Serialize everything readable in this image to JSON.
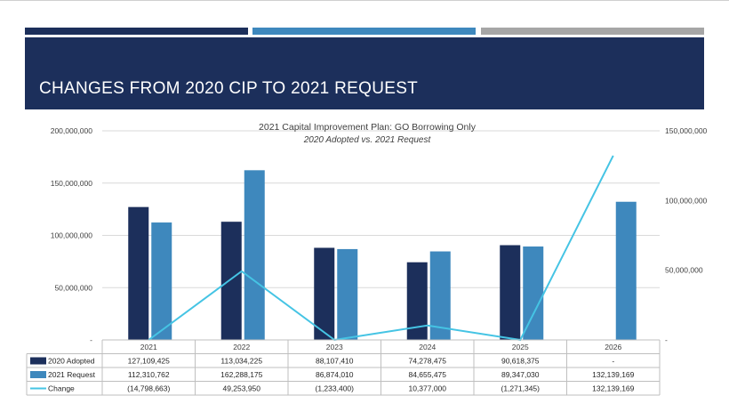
{
  "slide": {
    "title": "CHANGES FROM 2020 CIP TO 2021 REQUEST"
  },
  "colors": {
    "navy": "#1c2f5b",
    "blue": "#3e88bd",
    "gray": "#a6a6a6",
    "change_line": "#45c4e4"
  },
  "chart_data": {
    "type": "bar",
    "title": "2021 Capital Improvement Plan: GO Borrowing Only",
    "subtitle": "2020 Adopted vs. 2021 Request",
    "categories": [
      "2021",
      "2022",
      "2023",
      "2024",
      "2025",
      "2026"
    ],
    "series": [
      {
        "name": "2020 Adopted",
        "type": "bar",
        "axis": "left",
        "color": "#1c2f5b",
        "values": [
          127109425,
          113034225,
          88107410,
          74278475,
          90618375,
          null
        ],
        "labels": [
          "127,109,425",
          "113,034,225",
          "88,107,410",
          "74,278,475",
          "90,618,375",
          "-"
        ]
      },
      {
        "name": "2021 Request",
        "type": "bar",
        "axis": "left",
        "color": "#3e88bd",
        "values": [
          112310762,
          162288175,
          86874010,
          84655475,
          89347030,
          132139169
        ],
        "labels": [
          "112,310,762",
          "162,288,175",
          "86,874,010",
          "84,655,475",
          "89,347,030",
          "132,139,169"
        ]
      },
      {
        "name": "Change",
        "type": "line",
        "axis": "right",
        "color": "#45c4e4",
        "values": [
          -14798663,
          49253950,
          -1233400,
          10377000,
          -1271345,
          132139169
        ],
        "labels": [
          "(14,798,663)",
          "49,253,950",
          "(1,233,400)",
          "10,377,000",
          "(1,271,345)",
          "132,139,169"
        ]
      }
    ],
    "y_left": {
      "ylim": [
        0,
        200000000
      ],
      "ticks": [
        0,
        50000000,
        100000000,
        150000000,
        200000000
      ],
      "tick_labels": [
        "-",
        "50,000,000",
        "100,000,000",
        "150,000,000",
        "200,000,000"
      ]
    },
    "y_right": {
      "ylim": [
        0,
        150000000
      ],
      "ticks": [
        0,
        50000000,
        100000000,
        150000000
      ],
      "tick_labels": [
        "-",
        "50,000,000",
        "100,000,000",
        "150,000,000"
      ]
    },
    "grid": true,
    "legend": "data-table"
  }
}
